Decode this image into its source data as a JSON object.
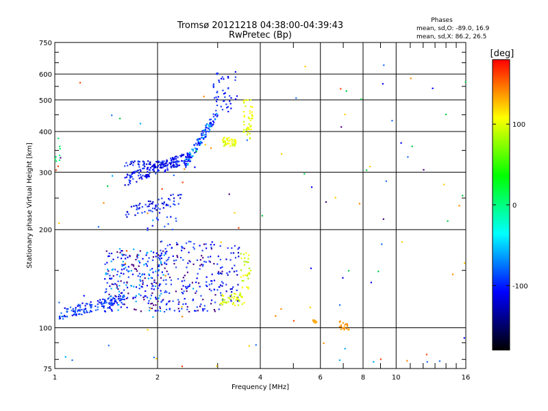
{
  "chart_data": {
    "type": "scatter",
    "title": "Tromsø 20121218 04:38:00-04:39:43",
    "subtitle": "RwPretec (Bp)",
    "xlabel": "Frequency [MHz]",
    "ylabel": "Stationary phase Virtual Height [km]",
    "xscale": "log",
    "yscale": "log",
    "xlim": [
      1,
      16
    ],
    "ylim": [
      75,
      750
    ],
    "x_ticks": [
      1,
      2,
      4,
      6,
      8,
      10,
      16
    ],
    "x_tick_labels": [
      "1",
      "2",
      "4",
      "6",
      "8",
      "10",
      "16"
    ],
    "x_minor_ticks": [
      3,
      5,
      7,
      9,
      11,
      12,
      13,
      14,
      15
    ],
    "y_ticks": [
      75,
      100,
      200,
      300,
      400,
      500,
      600,
      750
    ],
    "y_tick_labels": [
      "75",
      "100",
      "200",
      "300",
      "400",
      "500",
      "600",
      "750"
    ],
    "grid": true,
    "legend": {
      "heading": "Phases",
      "lines": [
        "mean, sd,O: -89.0, 16.9",
        "mean, sd,X:  86.2, 26.5"
      ]
    },
    "colorbar": {
      "label": "[deg]",
      "range": [
        -180,
        180
      ],
      "ticks": [
        100,
        0,
        -100
      ],
      "tick_labels": [
        "100",
        "0",
        "-100"
      ],
      "stops": [
        "#000000",
        "#0000ff",
        "#00ffff",
        "#00ff00",
        "#ffff00",
        "#ff0000"
      ]
    },
    "series": [
      {
        "type": "cluster",
        "x0": 1.03,
        "x1": 1.6,
        "y0": 110,
        "y1": 123,
        "rel": "grow",
        "c": [
          "#0000ee",
          "#0a3cff",
          "#1a6cff"
        ],
        "n": 150
      },
      {
        "type": "cluster",
        "x0": 1.4,
        "x1": 2.1,
        "y0": 112,
        "y1": 175,
        "rel": "box",
        "c": [
          "#0000ff",
          "#1b40ff",
          "#4b0082",
          "#00aaff"
        ],
        "n": 240
      },
      {
        "type": "cluster",
        "x0": 2.0,
        "x1": 3.1,
        "y0": 112,
        "y1": 185,
        "rel": "box",
        "c": [
          "#0000ff",
          "#1b40ff",
          "#4b0082",
          "#2255ff"
        ],
        "n": 200
      },
      {
        "type": "cluster",
        "x0": 3.05,
        "x1": 3.5,
        "y0": 120,
        "y1": 180,
        "rel": "box",
        "c": [
          "#0000cc",
          "#2233ff"
        ],
        "n": 40
      },
      {
        "type": "cluster",
        "x0": 3.05,
        "x1": 3.6,
        "y0": 117,
        "y1": 128,
        "rel": "box",
        "c": [
          "#ccff00",
          "#ffff00",
          "#aaee00"
        ],
        "n": 45
      },
      {
        "type": "cluster",
        "x0": 3.5,
        "x1": 3.75,
        "y0": 130,
        "y1": 170,
        "rel": "box",
        "c": [
          "#ccff00",
          "#ffff00",
          "#aaee00"
        ],
        "n": 30
      },
      {
        "type": "cluster",
        "x0": 1.6,
        "x1": 2.5,
        "y0": 283,
        "y1": 335,
        "rel": "grow",
        "c": [
          "#0000cc",
          "#1b40ff",
          "#0000ff"
        ],
        "n": 150
      },
      {
        "type": "cluster",
        "x0": 1.6,
        "x1": 2.3,
        "y0": 310,
        "y1": 325,
        "rel": "box",
        "c": [
          "#0000cc",
          "#1b40ff"
        ],
        "n": 70
      },
      {
        "type": "cluster",
        "x0": 2.4,
        "x1": 3.0,
        "y0": 315,
        "y1": 460,
        "rel": "grow",
        "c": [
          "#0000ff",
          "#1b40ff",
          "#00aaff"
        ],
        "n": 120
      },
      {
        "type": "cluster",
        "x0": 2.9,
        "x1": 3.45,
        "y0": 460,
        "y1": 610,
        "rel": "box",
        "c": [
          "#0000ff",
          "#1b40ff"
        ],
        "n": 45
      },
      {
        "type": "cluster",
        "x0": 3.1,
        "x1": 3.4,
        "y0": 360,
        "y1": 385,
        "rel": "box",
        "c": [
          "#ccff00",
          "#ffff00"
        ],
        "n": 40
      },
      {
        "type": "cluster",
        "x0": 3.55,
        "x1": 3.8,
        "y0": 380,
        "y1": 500,
        "rel": "box",
        "c": [
          "#ccff00",
          "#ffff00"
        ],
        "n": 45
      },
      {
        "type": "cluster",
        "x0": 1.6,
        "x1": 2.35,
        "y0": 225,
        "y1": 250,
        "rel": "grow",
        "c": [
          "#0000cc",
          "#1b40ff"
        ],
        "n": 60
      },
      {
        "type": "cluster",
        "x0": 1.85,
        "x1": 2.3,
        "y0": 195,
        "y1": 260,
        "rel": "box",
        "c": [
          "#0000ff",
          "#2255ff"
        ],
        "n": 20
      },
      {
        "type": "cluster",
        "x0": 5.7,
        "x1": 5.85,
        "y0": 103,
        "y1": 106,
        "rel": "box",
        "c": [
          "#ff9900",
          "#ffaa00"
        ],
        "n": 8
      },
      {
        "type": "cluster",
        "x0": 6.8,
        "x1": 7.3,
        "y0": 98,
        "y1": 105,
        "rel": "box",
        "c": [
          "#ff8800",
          "#ff9900",
          "#ffaa00"
        ],
        "n": 20
      },
      {
        "type": "cluster",
        "x0": 1.0,
        "x1": 1.05,
        "y0": 320,
        "y1": 390,
        "rel": "box",
        "c": [
          "#00ff88",
          "#00ee66"
        ],
        "n": 8
      },
      {
        "type": "scatter",
        "x0": 1.0,
        "x1": 16,
        "y0": 75,
        "y1": 650,
        "c": [
          "#0000ff",
          "#1a6cff",
          "#ff4400",
          "#00aaff",
          "#4b0082",
          "#ff8800",
          "#00cc44",
          "#ffcc00"
        ],
        "n": 110
      }
    ]
  }
}
